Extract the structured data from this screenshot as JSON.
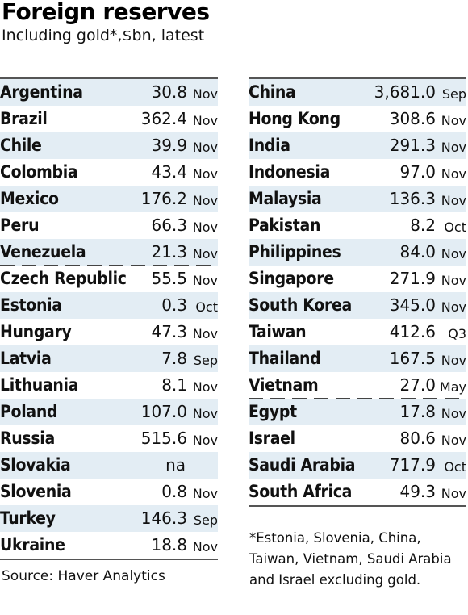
{
  "title": "Foreign reserves",
  "subtitle": "Including gold*,$bn, latest",
  "left_rows": [
    {
      "name": "Argentina",
      "value": "30.8",
      "date": "Nov"
    },
    {
      "name": "Brazil",
      "value": "362.4",
      "date": "Nov"
    },
    {
      "name": "Chile",
      "value": "39.9",
      "date": "Nov"
    },
    {
      "name": "Colombia",
      "value": "43.4",
      "date": "Nov"
    },
    {
      "name": "Mexico",
      "value": "176.2",
      "date": "Nov"
    },
    {
      "name": "Peru",
      "value": "66.3",
      "date": "Nov"
    },
    {
      "name": "Venezuela",
      "value": "21.3",
      "date": "Nov"
    },
    {
      "name": "Czech Republic",
      "value": "55.5",
      "date": "Nov"
    },
    {
      "name": "Estonia",
      "value": "0.3",
      "date": "Oct"
    },
    {
      "name": "Hungary",
      "value": "47.3",
      "date": "Nov"
    },
    {
      "name": "Latvia",
      "value": "7.8",
      "date": "Sep"
    },
    {
      "name": "Lithuania",
      "value": "8.1",
      "date": "Nov"
    },
    {
      "name": "Poland",
      "value": "107.0",
      "date": "Nov"
    },
    {
      "name": "Russia",
      "value": "515.6",
      "date": "Nov"
    },
    {
      "name": "Slovakia",
      "value": "na",
      "date": ""
    },
    {
      "name": "Slovenia",
      "value": "0.8",
      "date": "Nov"
    },
    {
      "name": "Turkey",
      "value": "146.3",
      "date": "Sep"
    },
    {
      "name": "Ukraine",
      "value": "18.8",
      "date": "Nov"
    }
  ],
  "right_rows": [
    {
      "name": "China",
      "value": "3,681.0",
      "date": "Sep"
    },
    {
      "name": "Hong Kong",
      "value": "308.6",
      "date": "Nov"
    },
    {
      "name": "India",
      "value": "291.3",
      "date": "Nov"
    },
    {
      "name": "Indonesia",
      "value": "97.0",
      "date": "Nov"
    },
    {
      "name": "Malaysia",
      "value": "136.3",
      "date": "Nov"
    },
    {
      "name": "Pakistan",
      "value": "8.2",
      "date": "Oct"
    },
    {
      "name": "Philippines",
      "value": "84.0",
      "date": "Nov"
    },
    {
      "name": "Singapore",
      "value": "271.9",
      "date": "Nov"
    },
    {
      "name": "South Korea",
      "value": "345.0",
      "date": "Nov"
    },
    {
      "name": "Taiwan",
      "value": "412.6",
      "date": "Q3"
    },
    {
      "name": "Thailand",
      "value": "167.5",
      "date": "Nov"
    },
    {
      "name": "Vietnam",
      "value": "27.0",
      "date": "May"
    },
    {
      "name": "Egypt",
      "value": "17.8",
      "date": "Nov"
    },
    {
      "name": "Israel",
      "value": "80.6",
      "date": "Nov"
    },
    {
      "name": "Saudi Arabia",
      "value": "717.9",
      "date": "Oct"
    },
    {
      "name": "South Africa",
      "value": "49.3",
      "date": "Nov"
    }
  ],
  "source": "Source: Haver Analytics",
  "footnote": "*Estonia, Slovenia, China, Taiwan, Vietnam, Saudi Arabia and Israel excluding gold."
}
